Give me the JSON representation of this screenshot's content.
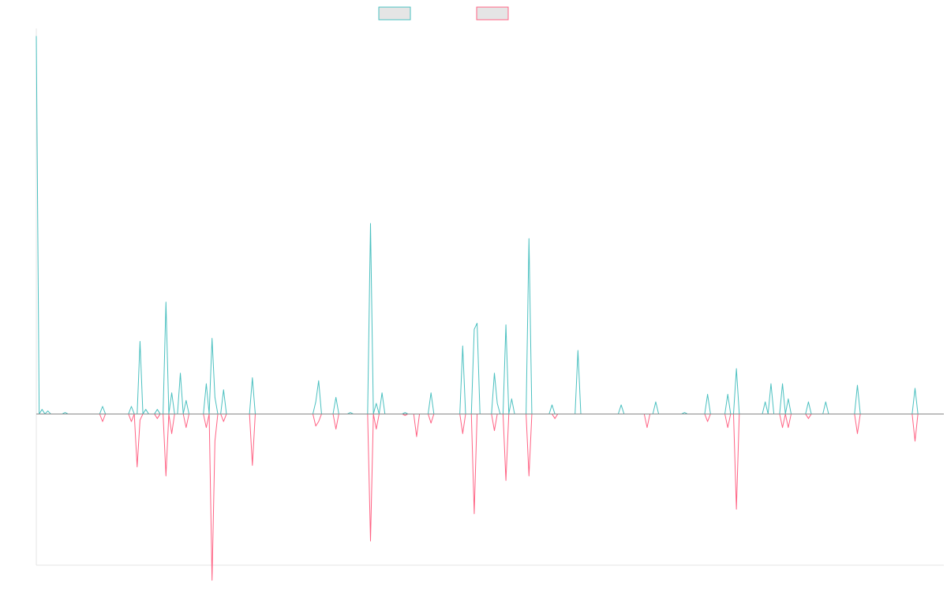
{
  "chart_data": {
    "type": "line",
    "title": "",
    "xlabel": "",
    "ylabel": "",
    "grid": false,
    "legend": "top-center",
    "x_count": 316,
    "ylim": [
      -100,
      255
    ],
    "zero_line_color": "#8a8a8a",
    "legend_fill": "#e5e5e5",
    "series": [
      {
        "color": "#4bc0c0",
        "direction": "up",
        "spikes": [
          [
            0,
            250
          ],
          [
            2,
            3
          ],
          [
            4,
            2
          ],
          [
            10,
            1
          ],
          [
            23,
            5
          ],
          [
            33,
            5
          ],
          [
            36,
            48
          ],
          [
            38,
            3
          ],
          [
            42,
            3
          ],
          [
            45,
            74
          ],
          [
            47,
            14
          ],
          [
            50,
            27
          ],
          [
            52,
            9
          ],
          [
            59,
            20
          ],
          [
            61,
            50
          ],
          [
            62,
            11
          ],
          [
            65,
            16
          ],
          [
            75,
            24
          ],
          [
            97,
            8
          ],
          [
            98,
            22
          ],
          [
            104,
            11
          ],
          [
            109,
            1
          ],
          [
            116,
            126
          ],
          [
            118,
            7
          ],
          [
            120,
            14
          ],
          [
            128,
            1
          ],
          [
            137,
            14
          ],
          [
            148,
            45
          ],
          [
            152,
            56
          ],
          [
            153,
            60
          ],
          [
            159,
            27
          ],
          [
            160,
            7
          ],
          [
            163,
            59
          ],
          [
            165,
            10
          ],
          [
            171,
            116
          ],
          [
            179,
            6
          ],
          [
            188,
            42
          ],
          [
            203,
            6
          ],
          [
            215,
            8
          ],
          [
            225,
            1
          ],
          [
            233,
            13
          ],
          [
            233,
            3
          ],
          [
            240,
            13
          ],
          [
            243,
            30
          ],
          [
            253,
            8
          ],
          [
            255,
            20
          ],
          [
            259,
            20
          ],
          [
            261,
            10
          ],
          [
            268,
            8
          ],
          [
            274,
            8
          ],
          [
            285,
            19
          ],
          [
            305,
            17
          ]
        ]
      },
      {
        "color": "#ff6384",
        "direction": "down",
        "spikes": [
          [
            23,
            5
          ],
          [
            33,
            5
          ],
          [
            35,
            35
          ],
          [
            36,
            4
          ],
          [
            42,
            3
          ],
          [
            45,
            41
          ],
          [
            47,
            13
          ],
          [
            52,
            9
          ],
          [
            59,
            9
          ],
          [
            61,
            110
          ],
          [
            62,
            18
          ],
          [
            65,
            5
          ],
          [
            75,
            34
          ],
          [
            97,
            8
          ],
          [
            98,
            5
          ],
          [
            104,
            10
          ],
          [
            116,
            84
          ],
          [
            118,
            10
          ],
          [
            128,
            1
          ],
          [
            132,
            15
          ],
          [
            137,
            6
          ],
          [
            148,
            13
          ],
          [
            152,
            66
          ],
          [
            159,
            11
          ],
          [
            163,
            44
          ],
          [
            171,
            41
          ],
          [
            180,
            3
          ],
          [
            212,
            9
          ],
          [
            233,
            5
          ],
          [
            240,
            9
          ],
          [
            243,
            63
          ],
          [
            259,
            9
          ],
          [
            261,
            9
          ],
          [
            268,
            3
          ],
          [
            285,
            13
          ],
          [
            305,
            18
          ]
        ]
      }
    ]
  }
}
